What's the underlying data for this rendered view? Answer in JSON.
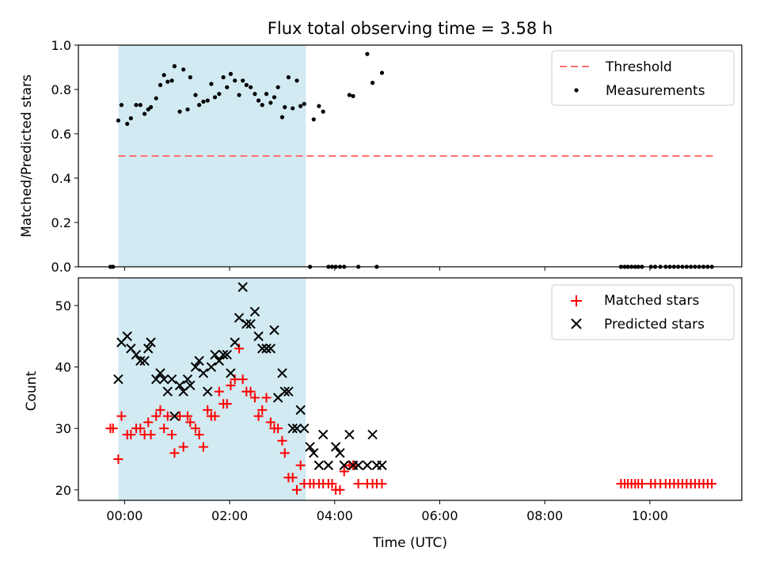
{
  "chart_data": [
    {
      "type": "scatter",
      "title": "Flux total observing time = 3.58 h",
      "ylabel": "Matched/Predicted stars",
      "xlabel": "",
      "xlim": [
        -0.88,
        11.75
      ],
      "ylim": [
        0,
        1.0
      ],
      "x_ticks": [
        0,
        2,
        4,
        6,
        8,
        10
      ],
      "x_tick_labels": [
        "",
        "",
        "",
        "",
        "",
        ""
      ],
      "y_ticks": [
        0.0,
        0.2,
        0.4,
        0.6,
        0.8,
        1.0
      ],
      "y_tick_labels": [
        "0.0",
        "0.2",
        "0.4",
        "0.6",
        "0.8",
        "1.0"
      ],
      "shaded_span": [
        -0.12,
        3.45
      ],
      "shade_color": "#add8e6",
      "legend": {
        "position": "top-right",
        "entries": [
          "Threshold",
          "Measurements"
        ]
      },
      "threshold": {
        "name": "Threshold",
        "y": 0.5,
        "x": [
          -0.12,
          11.22
        ],
        "color": "#ff7070"
      },
      "series": [
        {
          "name": "Measurements",
          "color": "#000000",
          "x": [
            -0.27,
            -0.22,
            -0.12,
            -0.06,
            0.05,
            0.12,
            0.22,
            0.3,
            0.38,
            0.45,
            0.5,
            0.6,
            0.68,
            0.75,
            0.82,
            0.9,
            0.95,
            1.05,
            1.12,
            1.2,
            1.25,
            1.35,
            1.42,
            1.5,
            1.58,
            1.65,
            1.72,
            1.8,
            1.88,
            1.95,
            2.02,
            2.1,
            2.18,
            2.25,
            2.32,
            2.4,
            2.48,
            2.55,
            2.62,
            2.7,
            2.78,
            2.85,
            2.92,
            3.0,
            3.05,
            3.12,
            3.2,
            3.28,
            3.35,
            3.42,
            3.53,
            3.6,
            3.7,
            3.78,
            3.88,
            3.95,
            4.02,
            4.1,
            4.18,
            4.28,
            4.35,
            4.45,
            4.62,
            4.72,
            4.8,
            4.9,
            9.45,
            9.52,
            9.58,
            9.65,
            9.72,
            9.78,
            9.85,
            10.02,
            10.1,
            10.2,
            10.3,
            10.38,
            10.46,
            10.54,
            10.62,
            10.7,
            10.78,
            10.86,
            10.94,
            11.02,
            11.1,
            11.18
          ],
          "y": [
            0,
            0,
            0.66,
            0.73,
            0.645,
            0.67,
            0.73,
            0.73,
            0.69,
            0.71,
            0.72,
            0.76,
            0.82,
            0.865,
            0.835,
            0.84,
            0.905,
            0.7,
            0.89,
            0.71,
            0.855,
            0.775,
            0.73,
            0.745,
            0.75,
            0.825,
            0.765,
            0.78,
            0.855,
            0.81,
            0.87,
            0.84,
            0.775,
            0.84,
            0.82,
            0.81,
            0.78,
            0.75,
            0.73,
            0.78,
            0.74,
            0.765,
            0.81,
            0.675,
            0.72,
            0.855,
            0.715,
            0.84,
            0.725,
            0.735,
            0,
            0.665,
            0.725,
            0.7,
            0,
            0,
            0,
            0,
            0,
            0.775,
            0.77,
            0,
            0.96,
            0.83,
            0,
            0.875,
            0,
            0,
            0,
            0,
            0,
            0,
            0,
            0,
            0,
            0,
            0,
            0,
            0,
            0,
            0,
            0,
            0,
            0,
            0,
            0,
            0,
            0
          ]
        }
      ]
    },
    {
      "type": "scatter",
      "title": "",
      "ylabel": "Count",
      "xlabel": "Time (UTC)",
      "xlim": [
        -0.88,
        11.75
      ],
      "ylim": [
        18.3,
        54.5
      ],
      "x_ticks": [
        0,
        2,
        4,
        6,
        8,
        10
      ],
      "x_tick_labels": [
        "00:00",
        "02:00",
        "04:00",
        "06:00",
        "08:00",
        "10:00"
      ],
      "y_ticks": [
        20,
        30,
        40,
        50
      ],
      "y_tick_labels": [
        "20",
        "30",
        "40",
        "50"
      ],
      "shaded_span": [
        -0.12,
        3.45
      ],
      "shade_color": "#add8e6",
      "legend": {
        "position": "top-right",
        "entries": [
          "Matched stars",
          "Predicted stars"
        ]
      },
      "series": [
        {
          "name": "Matched stars",
          "marker": "plus",
          "color": "#ff0000",
          "x": [
            -0.27,
            -0.22,
            -0.12,
            -0.06,
            0.05,
            0.12,
            0.22,
            0.3,
            0.38,
            0.45,
            0.5,
            0.6,
            0.68,
            0.75,
            0.82,
            0.9,
            0.95,
            1.05,
            1.12,
            1.2,
            1.25,
            1.35,
            1.42,
            1.5,
            1.58,
            1.65,
            1.72,
            1.8,
            1.88,
            1.95,
            2.02,
            2.1,
            2.18,
            2.25,
            2.32,
            2.4,
            2.48,
            2.55,
            2.62,
            2.7,
            2.78,
            2.85,
            2.92,
            3.0,
            3.05,
            3.12,
            3.2,
            3.28,
            3.35,
            3.42,
            3.53,
            3.6,
            3.7,
            3.78,
            3.88,
            3.95,
            4.02,
            4.1,
            4.18,
            4.28,
            4.35,
            4.45,
            4.62,
            4.72,
            4.8,
            4.9,
            9.45,
            9.52,
            9.58,
            9.65,
            9.72,
            9.78,
            9.85,
            10.02,
            10.1,
            10.2,
            10.3,
            10.38,
            10.46,
            10.54,
            10.62,
            10.7,
            10.78,
            10.86,
            10.94,
            11.02,
            11.1,
            11.18
          ],
          "y": [
            30,
            30,
            25,
            32,
            29,
            29,
            30,
            30,
            29,
            31,
            29,
            32,
            33,
            30,
            32,
            29,
            26,
            32,
            27,
            32,
            31,
            30,
            29,
            27,
            33,
            32,
            32,
            36,
            34,
            34,
            37,
            38,
            43,
            38,
            36,
            36,
            35,
            32,
            33,
            35,
            31,
            30,
            30,
            28,
            26,
            22,
            22,
            20,
            24,
            21,
            21,
            21,
            21,
            21,
            21,
            21,
            20,
            20,
            23,
            24,
            24,
            21,
            21,
            21,
            21,
            21,
            21,
            21,
            21,
            21,
            21,
            21,
            21,
            21,
            21,
            21,
            21,
            21,
            21,
            21,
            21,
            21,
            21,
            21,
            21,
            21,
            21,
            21
          ]
        },
        {
          "name": "Predicted stars",
          "marker": "x",
          "color": "#000000",
          "x": [
            -0.12,
            -0.06,
            0.05,
            0.12,
            0.22,
            0.3,
            0.38,
            0.45,
            0.5,
            0.6,
            0.68,
            0.75,
            0.82,
            0.9,
            0.95,
            1.05,
            1.12,
            1.2,
            1.25,
            1.35,
            1.42,
            1.5,
            1.58,
            1.65,
            1.72,
            1.8,
            1.88,
            1.95,
            2.02,
            2.1,
            2.18,
            2.25,
            2.32,
            2.4,
            2.48,
            2.55,
            2.62,
            2.7,
            2.78,
            2.85,
            2.92,
            3.0,
            3.05,
            3.12,
            3.2,
            3.28,
            3.35,
            3.42,
            3.53,
            3.6,
            3.7,
            3.78,
            3.88,
            4.02,
            4.1,
            4.18,
            4.28,
            4.35,
            4.45,
            4.62,
            4.72,
            4.8,
            4.9
          ],
          "y": [
            38,
            44,
            45,
            43,
            42,
            41,
            41,
            43,
            44,
            38,
            39,
            38,
            36,
            38,
            32,
            37,
            36,
            38,
            37,
            40,
            41,
            39,
            36,
            40,
            42,
            41,
            42,
            42,
            39,
            44,
            48,
            53,
            47,
            47,
            49,
            45,
            43,
            43,
            43,
            46,
            35,
            39,
            36,
            36,
            30,
            30,
            33,
            30,
            27,
            26,
            24,
            29,
            24,
            27,
            26,
            24,
            29,
            24,
            24,
            24,
            29,
            24,
            24
          ]
        }
      ]
    }
  ]
}
